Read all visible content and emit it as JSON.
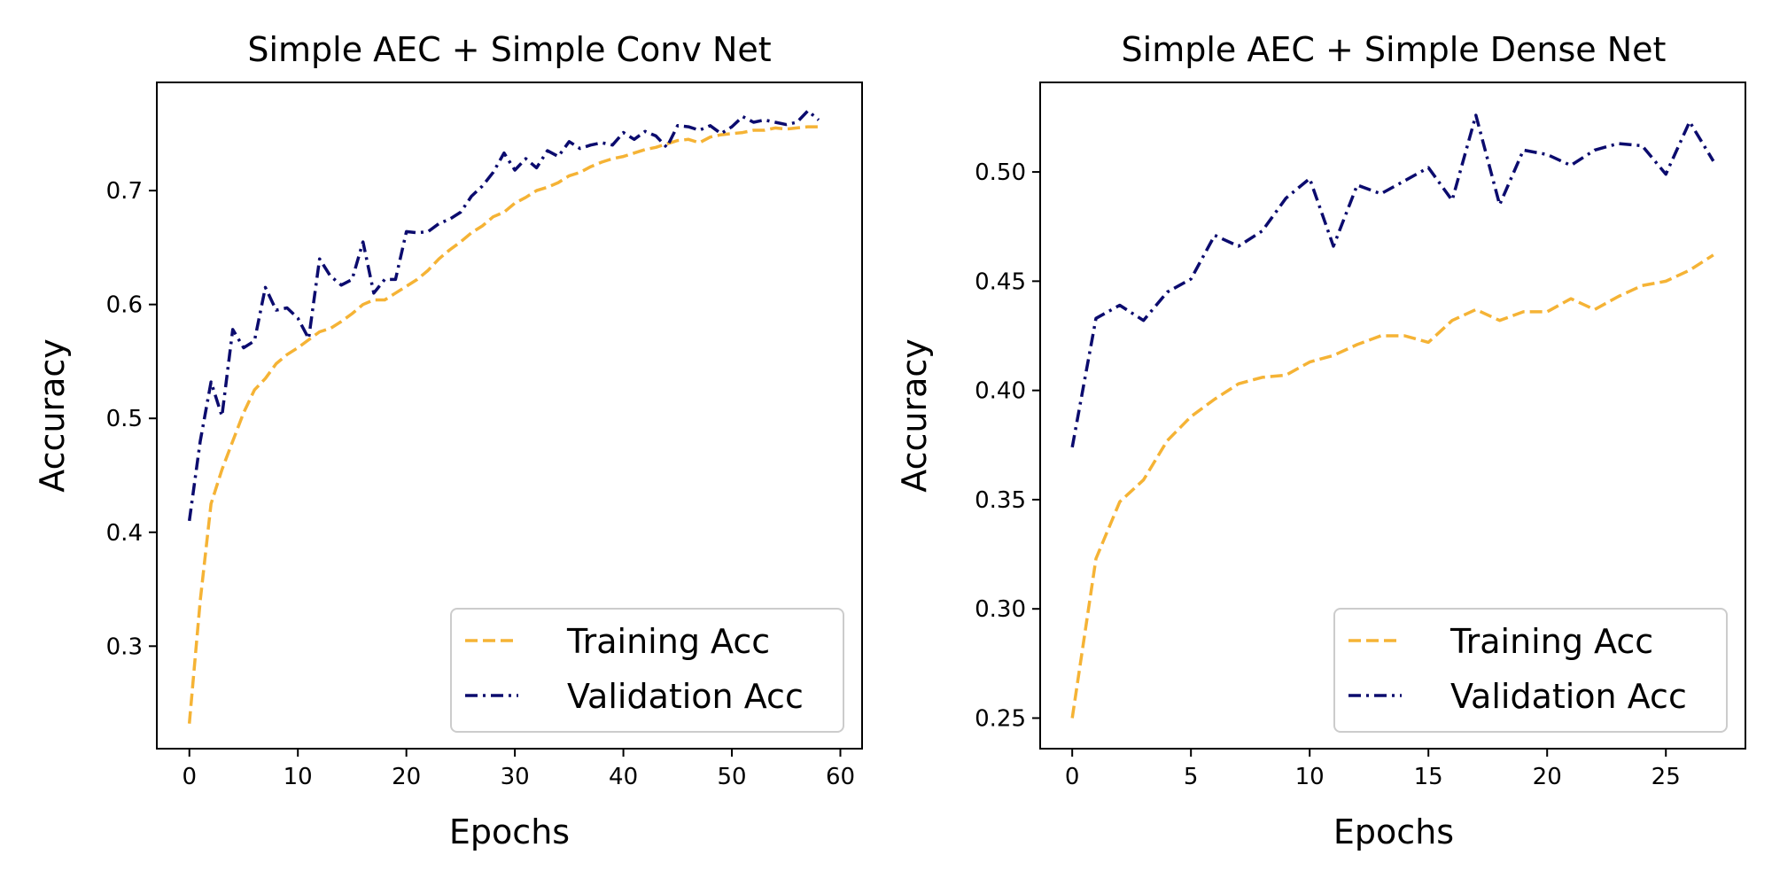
{
  "colors": {
    "training": "#F5B335",
    "validation": "#0B0B6E",
    "axes": "#000000"
  },
  "chart_data": [
    {
      "type": "line",
      "title": "Simple AEC + Simple Conv Net",
      "xlabel": "Epochs",
      "ylabel": "Accuracy",
      "xlim": [
        -3,
        62
      ],
      "ylim": [
        0.21,
        0.795
      ],
      "xticks": [
        0,
        10,
        20,
        30,
        40,
        50,
        60
      ],
      "yticks": [
        0.3,
        0.4,
        0.5,
        0.6,
        0.7
      ],
      "ytick_labels": [
        "0.3",
        "0.4",
        "0.5",
        "0.6",
        "0.7"
      ],
      "grid": false,
      "legend_position": "lower right",
      "x": [
        0,
        1,
        2,
        3,
        4,
        5,
        6,
        7,
        8,
        9,
        10,
        11,
        12,
        13,
        14,
        15,
        16,
        17,
        18,
        19,
        20,
        21,
        22,
        23,
        24,
        25,
        26,
        27,
        28,
        29,
        30,
        31,
        32,
        33,
        34,
        35,
        36,
        37,
        38,
        39,
        40,
        41,
        42,
        43,
        44,
        45,
        46,
        47,
        48,
        49,
        50,
        51,
        52,
        53,
        54,
        55,
        56,
        57,
        58
      ],
      "series": [
        {
          "name": "Training Acc",
          "style": "dashed",
          "values": [
            0.232,
            0.34,
            0.425,
            0.455,
            0.48,
            0.505,
            0.525,
            0.535,
            0.548,
            0.556,
            0.562,
            0.569,
            0.576,
            0.579,
            0.585,
            0.592,
            0.6,
            0.604,
            0.604,
            0.61,
            0.616,
            0.622,
            0.63,
            0.64,
            0.648,
            0.655,
            0.663,
            0.669,
            0.677,
            0.681,
            0.689,
            0.694,
            0.7,
            0.703,
            0.707,
            0.713,
            0.716,
            0.721,
            0.725,
            0.728,
            0.73,
            0.733,
            0.736,
            0.738,
            0.741,
            0.744,
            0.745,
            0.742,
            0.747,
            0.749,
            0.75,
            0.751,
            0.753,
            0.753,
            0.755,
            0.754,
            0.755,
            0.756,
            0.756
          ]
        },
        {
          "name": "Validation Acc",
          "style": "dashdot",
          "values": [
            0.41,
            0.48,
            0.532,
            0.502,
            0.578,
            0.562,
            0.568,
            0.615,
            0.595,
            0.597,
            0.588,
            0.57,
            0.64,
            0.625,
            0.617,
            0.622,
            0.655,
            0.61,
            0.622,
            0.622,
            0.664,
            0.663,
            0.664,
            0.671,
            0.675,
            0.681,
            0.695,
            0.704,
            0.716,
            0.733,
            0.718,
            0.728,
            0.72,
            0.735,
            0.73,
            0.743,
            0.737,
            0.74,
            0.742,
            0.74,
            0.751,
            0.745,
            0.752,
            0.748,
            0.738,
            0.757,
            0.756,
            0.753,
            0.757,
            0.75,
            0.756,
            0.765,
            0.76,
            0.762,
            0.76,
            0.758,
            0.76,
            0.77,
            0.762
          ]
        }
      ]
    },
    {
      "type": "line",
      "title": "Simple AEC + Simple Dense Net",
      "xlabel": "Epochs",
      "ylabel": "Accuracy",
      "xlim": [
        -1.35,
        28.35
      ],
      "ylim": [
        0.236,
        0.541
      ],
      "xticks": [
        0,
        5,
        10,
        15,
        20,
        25
      ],
      "yticks": [
        0.25,
        0.3,
        0.35,
        0.4,
        0.45,
        0.5
      ],
      "ytick_labels": [
        "0.25",
        "0.30",
        "0.35",
        "0.40",
        "0.45",
        "0.50"
      ],
      "grid": false,
      "legend_position": "lower right",
      "x": [
        0,
        1,
        2,
        3,
        4,
        5,
        6,
        7,
        8,
        9,
        10,
        11,
        12,
        13,
        14,
        15,
        16,
        17,
        18,
        19,
        20,
        21,
        22,
        23,
        24,
        25,
        26,
        27
      ],
      "series": [
        {
          "name": "Training Acc",
          "style": "dashed",
          "values": [
            0.25,
            0.323,
            0.349,
            0.359,
            0.377,
            0.388,
            0.396,
            0.403,
            0.406,
            0.407,
            0.413,
            0.416,
            0.421,
            0.425,
            0.425,
            0.422,
            0.432,
            0.437,
            0.432,
            0.436,
            0.436,
            0.442,
            0.437,
            0.443,
            0.448,
            0.45,
            0.455,
            0.462
          ]
        },
        {
          "name": "Validation Acc",
          "style": "dashdot",
          "values": [
            0.374,
            0.433,
            0.439,
            0.432,
            0.445,
            0.451,
            0.471,
            0.466,
            0.473,
            0.488,
            0.497,
            0.466,
            0.494,
            0.49,
            0.496,
            0.502,
            0.487,
            0.526,
            0.485,
            0.51,
            0.508,
            0.503,
            0.51,
            0.513,
            0.512,
            0.499,
            0.523,
            0.505
          ]
        }
      ]
    }
  ]
}
